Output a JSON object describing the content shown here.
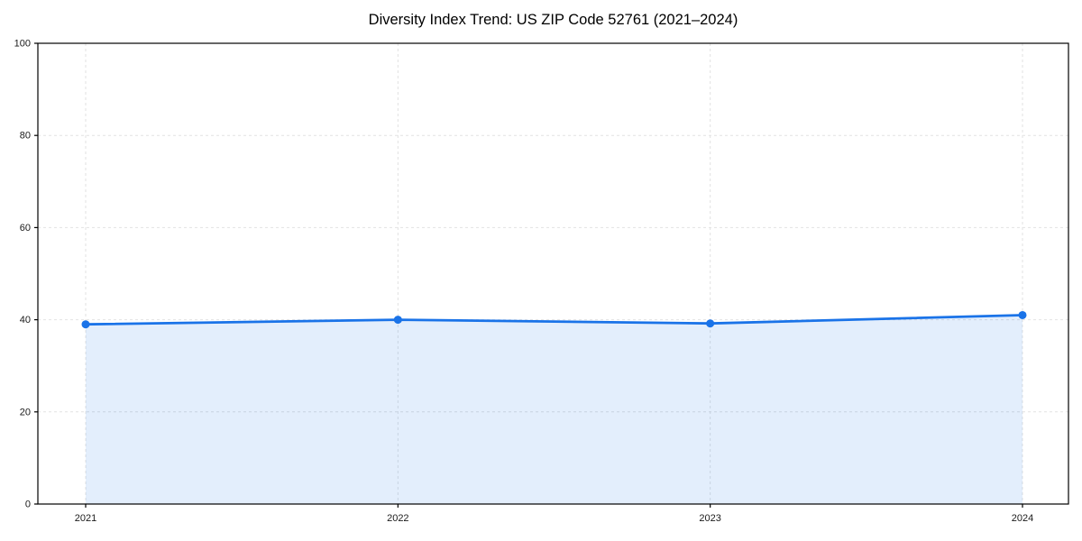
{
  "chart_data": {
    "type": "line",
    "title": "Diversity Index Trend: US ZIP Code 52761 (2021–2024)",
    "series_name": "Diversity Index",
    "x": [
      2021,
      2022,
      2023,
      2024
    ],
    "values": [
      39,
      40,
      39.2,
      41
    ],
    "xticks": [
      "2021",
      "2022",
      "2023",
      "2024"
    ],
    "yticks": [
      0,
      20,
      40,
      60,
      80,
      100
    ],
    "ylim": [
      0,
      100
    ],
    "xlabel": "",
    "ylabel": "",
    "grid": true,
    "grid_style": "dashed",
    "legend_position": "none",
    "marker": "circle",
    "area_fill": true,
    "colors": {
      "line": "#1a73e8",
      "marker": "#1a73e8",
      "area": "#1a73e8",
      "area_opacity": 0.12,
      "grid": "#e2e2e2",
      "axis": "#000000",
      "tick_label": "#1a1a1a",
      "title": "#000000",
      "background": "#ffffff"
    }
  }
}
